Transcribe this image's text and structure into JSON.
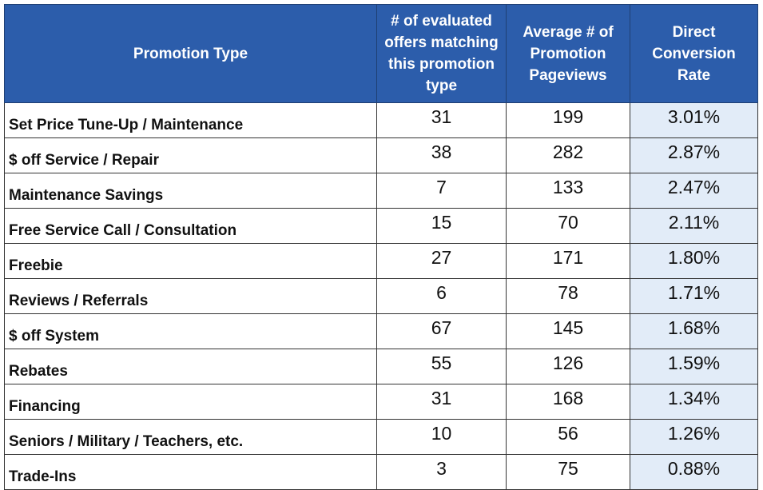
{
  "chart_data": {
    "type": "table",
    "columns": [
      "Promotion Type",
      "# of evaluated offers matching this promotion type",
      "Average # of Promotion Pageviews",
      "Direct Conversion Rate"
    ],
    "rows": [
      [
        "Set Price Tune-Up / Maintenance",
        "31",
        "199",
        "3.01%"
      ],
      [
        "$ off Service / Repair",
        "38",
        "282",
        "2.87%"
      ],
      [
        "Maintenance Savings",
        "7",
        "133",
        "2.47%"
      ],
      [
        "Free Service Call / Consultation",
        "15",
        "70",
        "2.11%"
      ],
      [
        "Freebie",
        "27",
        "171",
        "1.80%"
      ],
      [
        "Reviews / Referrals",
        "6",
        "78",
        "1.71%"
      ],
      [
        "$ off System",
        "67",
        "145",
        "1.68%"
      ],
      [
        "Rebates",
        "55",
        "126",
        "1.59%"
      ],
      [
        "Financing",
        "31",
        "168",
        "1.34%"
      ],
      [
        "Seniors / Military / Teachers, etc.",
        "10",
        "56",
        "1.26%"
      ],
      [
        "Trade-Ins",
        "3",
        "75",
        "0.88%"
      ]
    ]
  },
  "colors": {
    "header_background": "#2c5dab",
    "header_text": "#ffffff",
    "highlight_column_background": "#e2ecf8",
    "border": "#333333"
  }
}
